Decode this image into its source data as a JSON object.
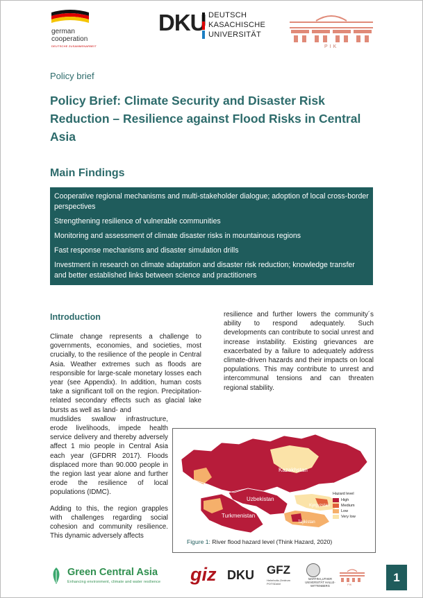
{
  "header": {
    "gc_line1": "german",
    "gc_line2": "cooperation",
    "gc_line3": "DEUTSCHE ZUSAMMENARBEIT",
    "dku_abbr": "DKU",
    "dku_line1": "DEUTSCH",
    "dku_line2": "KASACHISCHE",
    "dku_line3": "UNIVERSITÄT",
    "pik_label": "PIK"
  },
  "doc_type": "Policy brief",
  "title": "Policy Brief: Climate Security and Disaster Risk Reduction – Resilience against Flood Risks in Central Asia",
  "main_findings": {
    "heading": "Main Findings",
    "items": [
      "Cooperative regional mechanisms and multi-stakeholder dialogue; adoption of local cross-border perspectives",
      "Strengthening resilience of vulnerable communities",
      "Monitoring and assessment of climate disaster risks in mountainous regions",
      "Fast response mechanisms and disaster simulation drills",
      "Investment in research on climate adaptation and disaster risk reduction; knowledge transfer and better established links between science and practitioners"
    ]
  },
  "introduction": {
    "heading": "Introduction",
    "p1": " Climate change represents a challenge to governments, economies, and societies, most crucially, to the resilience of the people in Central Asia. Weather extremes such as floods are responsible for large-scale monetary losses each year (see Appendix). In addition, human costs take a significant toll on the region. Precipitation-related secondary effects such as glacial lake bursts as well as land- and",
    "p1b": "mudslides swallow infrastructure, erode livelihoods, impede health service delivery and thereby adversely affect 1 mio people in Central Asia each year (GFDRR 2017). Floods displaced more than 90.000 people in the region last year alone and further erode the resilience of local populations (IDMC).",
    "p2": "Adding to this, the region grapples with challenges regarding social cohesion and community resilience. This dynamic adversely affects",
    "right": "resilience and further lowers the community´s ability to respond adequately. Such developments can contribute to social unrest and increase instability. Existing grievances are exacerbated by a failure to adequately address climate-driven hazards and their impacts on local populations. This may contribute to unrest and intercommunal tensions and can threaten regional stability."
  },
  "figure": {
    "label": "Figure 1:",
    "caption": " River flood hazard level (Think Hazard, 2020)",
    "map_labels": {
      "kazakhstan": "Kazakhstan",
      "uzbekistan": "Uzbekistan",
      "turkmenistan": "Turkmenistan",
      "kyrgyzstan": "Kyrgyzstan",
      "tajikistan": "Tajikistan"
    },
    "legend_title": "Hazard level",
    "legend": [
      {
        "label": "High",
        "color": "#b71c3a"
      },
      {
        "label": "Medium",
        "color": "#e0603a"
      },
      {
        "label": "Low",
        "color": "#f5b06b"
      },
      {
        "label": "Very low",
        "color": "#fbe3a8"
      }
    ]
  },
  "footer": {
    "gca_name": "Green Central Asia",
    "gca_tagline": "Enhancing environment, climate and water resilience",
    "giz": "giz",
    "dku": "DKU",
    "gfz": "GFZ",
    "gfz_sub": "Helmholtz-Zentrum POTSDAM",
    "mlu": "MARTIN-LUTHER UNIVERSITÄT HALLE-WITTENBERG",
    "pik": "PIK",
    "page_number": "1"
  }
}
